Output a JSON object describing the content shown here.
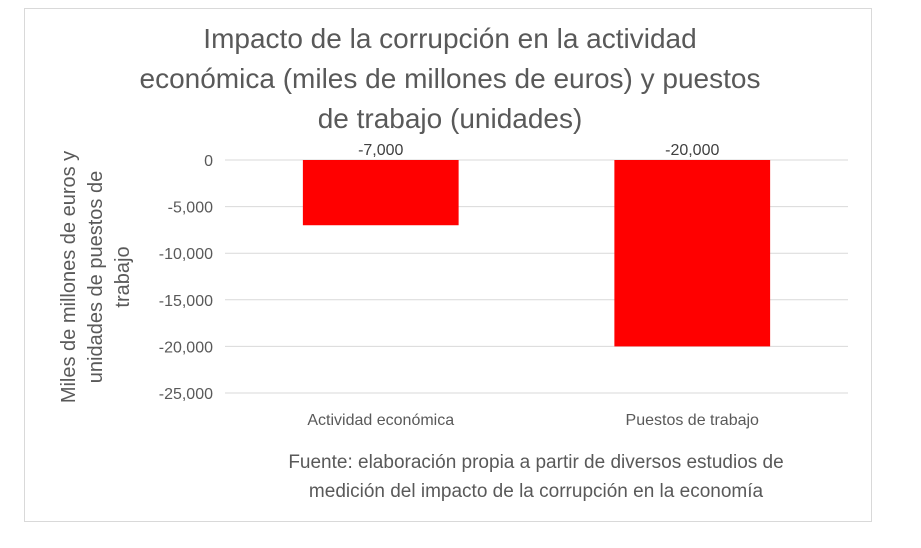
{
  "chart_data": {
    "type": "bar",
    "title_lines": [
      "Impacto de la corrupción en la actividad",
      "económica (miles de millones de euros) y puestos",
      "de trabajo (unidades)"
    ],
    "categories": [
      "Actividad económica",
      "Puestos de trabajo"
    ],
    "values": [
      -7000,
      -20000
    ],
    "data_labels": [
      "-7,000",
      "-20,000"
    ],
    "ylabel_lines": [
      "Miles de millones de euros y",
      "unidades de puestos de",
      "trabajo"
    ],
    "xlabel": "",
    "ylim": [
      -25000,
      0
    ],
    "y_ticks": [
      0,
      -5000,
      -10000,
      -15000,
      -20000,
      -25000
    ],
    "y_tick_labels": [
      "0",
      "-5,000",
      "-10,000",
      "-15,000",
      "-20,000",
      "-25,000"
    ],
    "grid": true,
    "bar_color": "#ff0000",
    "source_lines": [
      "Fuente: elaboración propia a partir de diversos estudios de",
      "medición del impacto de la corrupción en la economía"
    ]
  }
}
